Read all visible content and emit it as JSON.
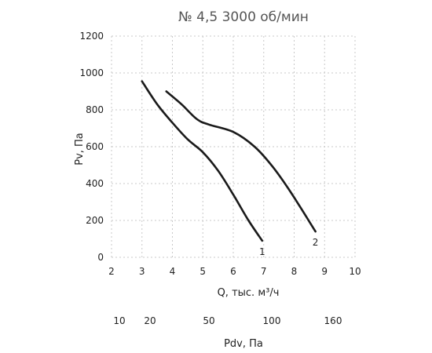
{
  "chart_data": {
    "type": "line",
    "title": "№ 4,5 3000 об/мин",
    "xlabel": "Q, тыс. м³/ч",
    "ylabel": "Pv, Па",
    "xlim": [
      2,
      10
    ],
    "ylim": [
      0,
      1200
    ],
    "x_ticks": [
      "2",
      "3",
      "4",
      "5",
      "6",
      "7",
      "8",
      "9",
      "10"
    ],
    "y_ticks": [
      "0",
      "200",
      "400",
      "600",
      "800",
      "1000",
      "1200"
    ],
    "grid": "dashed",
    "series": [
      {
        "name": "1",
        "x": [
          3.0,
          3.5,
          4.0,
          4.5,
          5.0,
          5.5,
          6.0,
          6.5,
          6.95
        ],
        "y": [
          955,
          830,
          730,
          640,
          570,
          470,
          340,
          200,
          90
        ]
      },
      {
        "name": "2",
        "x": [
          3.8,
          4.3,
          4.8,
          5.2,
          6.0,
          6.7,
          7.3,
          7.9,
          8.7
        ],
        "y": [
          900,
          830,
          750,
          720,
          680,
          600,
          490,
          350,
          140
        ]
      }
    ],
    "secondary_axis": {
      "label": "Pdv, Па",
      "ticks": [
        "10",
        "20",
        "50",
        "100",
        "160"
      ]
    }
  }
}
